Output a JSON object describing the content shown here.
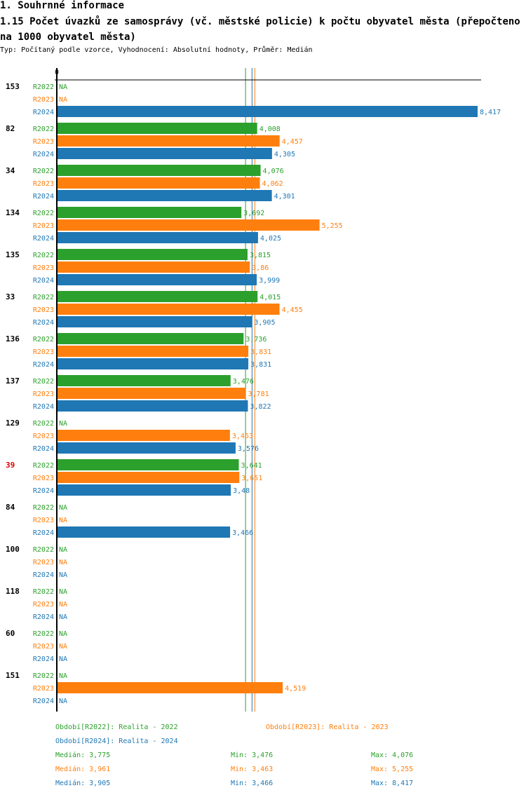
{
  "section_title": "1. Souhrnné informace",
  "chart_title": "1.15 Počet úvazků ze samosprávy (vč. městské policie) k počtu obyvatel města (přepočteno na 1000 obyvatel města)",
  "subtitle": "Typ: Počítaný podle vzorce, Vyhodnocení: Absolutní hodnoty, Průměr: Medián",
  "chart_data": {
    "type": "bar",
    "orientation": "horizontal",
    "x_tick_labels": [
      "0"
    ],
    "xlim": [
      0,
      8.417
    ],
    "decimal_separator": ",",
    "series": [
      {
        "name": "R2022",
        "color": "#2ca02c",
        "legend": "Období[R2022]: Realita - 2022",
        "median_label": "Medián: 3,775",
        "min_label": "Min: 3,476",
        "max_label": "Max: 4,076",
        "median": 3.775
      },
      {
        "name": "R2023",
        "color": "#ff7f0e",
        "legend": "Období[R2023]: Realita - 2023",
        "median_label": "Medián: 3,961",
        "min_label": "Min: 3,463",
        "max_label": "Max: 5,255",
        "median": 3.961
      },
      {
        "name": "R2024",
        "color": "#1f77b4",
        "legend": "Období[R2024]: Realita - 2024",
        "median_label": "Medián: 3,905",
        "min_label": "Min: 3,466",
        "max_label": "Max: 8,417",
        "median": 3.905
      }
    ],
    "na_label": "NA",
    "highlight_color": "#e00000",
    "groups": [
      {
        "label": "153",
        "values": [
          null,
          null,
          8.417
        ]
      },
      {
        "label": "82",
        "values": [
          4.008,
          4.457,
          4.305
        ]
      },
      {
        "label": "34",
        "values": [
          4.076,
          4.062,
          4.301
        ]
      },
      {
        "label": "134",
        "values": [
          3.692,
          5.255,
          4.025
        ]
      },
      {
        "label": "135",
        "values": [
          3.815,
          3.86,
          3.999
        ]
      },
      {
        "label": "33",
        "values": [
          4.015,
          4.455,
          3.905
        ]
      },
      {
        "label": "136",
        "values": [
          3.736,
          3.831,
          3.831
        ]
      },
      {
        "label": "137",
        "values": [
          3.476,
          3.781,
          3.822
        ]
      },
      {
        "label": "129",
        "values": [
          null,
          3.463,
          3.576
        ]
      },
      {
        "label": "39",
        "values": [
          3.641,
          3.651,
          3.48
        ],
        "highlight": true
      },
      {
        "label": "84",
        "values": [
          null,
          null,
          3.466
        ]
      },
      {
        "label": "100",
        "values": [
          null,
          null,
          null
        ]
      },
      {
        "label": "118",
        "values": [
          null,
          null,
          null
        ]
      },
      {
        "label": "60",
        "values": [
          null,
          null,
          null
        ]
      },
      {
        "label": "151",
        "values": [
          null,
          4.519,
          null
        ]
      }
    ]
  }
}
